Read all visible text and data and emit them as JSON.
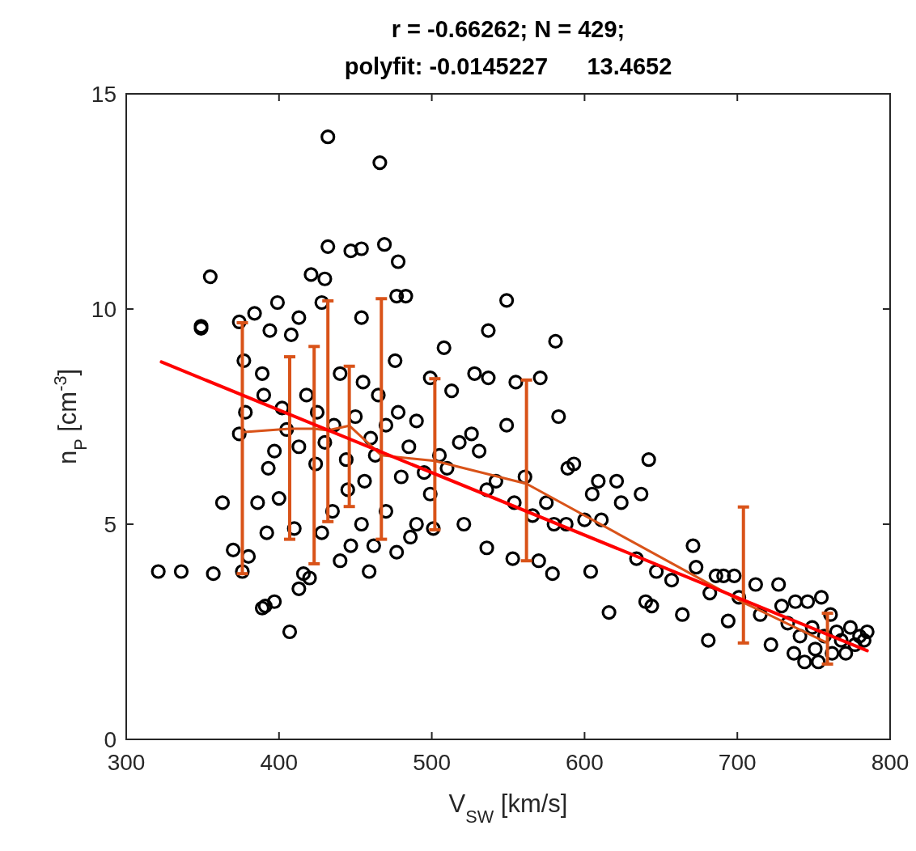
{
  "chart_data": {
    "type": "scatter",
    "title": "r = -0.66262; N = 429;",
    "subtitle": "polyfit: -0.0145227      13.4652",
    "xlabel": "V$_{SW}$ [km/s]",
    "ylabel": "n$_{P}$ [cm$^{-3}$]",
    "xlim": [
      300,
      800
    ],
    "ylim": [
      0,
      15
    ],
    "xticks": [
      300,
      400,
      500,
      600,
      700,
      800
    ],
    "yticks": [
      0,
      5,
      10,
      15
    ],
    "grid": false,
    "series": [
      {
        "marker": "circle",
        "color": "#000000",
        "x": [
          432,
          466,
          355,
          349,
          349,
          432,
          447,
          454,
          469,
          478,
          421,
          430,
          428,
          399,
          384,
          374,
          394,
          413,
          408,
          454,
          483,
          477,
          549,
          537,
          581,
          583,
          508,
          499,
          528,
          537,
          555,
          571,
          593,
          589,
          605,
          609,
          621,
          637,
          642,
          624,
          611,
          604,
          616,
          588,
          579,
          570,
          553,
          536,
          521,
          486,
          477,
          462,
          459,
          447,
          440,
          420,
          416,
          413,
          407,
          397,
          389,
          391,
          376,
          336,
          321,
          357,
          363,
          370,
          380,
          392,
          386,
          400,
          393,
          378,
          374,
          377,
          389,
          402,
          397,
          390,
          413,
          405,
          418,
          425,
          424,
          430,
          436,
          440,
          444,
          450,
          455,
          456,
          460,
          463,
          465,
          470,
          476,
          478,
          485,
          490,
          495,
          499,
          505,
          510,
          513,
          518,
          526,
          531,
          536,
          542,
          549,
          554,
          561,
          566,
          575,
          580,
          600,
          634,
          640,
          644,
          647,
          657,
          664,
          671,
          673,
          681,
          682,
          686,
          691,
          694,
          698,
          701,
          712,
          715,
          722,
          727,
          729,
          733,
          737,
          738,
          741,
          744,
          746,
          749,
          751,
          755,
          757,
          753,
          761,
          762,
          765,
          768,
          771,
          774,
          777,
          780,
          783,
          785,
          454,
          445,
          435,
          428,
          410,
          470,
          480,
          490,
          501
        ],
        "values": [
          14.0,
          13.4,
          10.75,
          9.6,
          9.55,
          11.45,
          11.35,
          11.4,
          11.5,
          11.1,
          10.8,
          10.7,
          10.15,
          10.15,
          9.9,
          9.7,
          9.5,
          9.8,
          9.4,
          9.8,
          10.3,
          10.3,
          10.2,
          9.5,
          9.25,
          7.5,
          9.1,
          8.4,
          8.5,
          8.4,
          8.3,
          8.4,
          6.4,
          6.3,
          5.7,
          6.0,
          6.0,
          5.7,
          6.5,
          5.5,
          5.1,
          3.9,
          2.95,
          5.0,
          3.85,
          4.15,
          4.2,
          4.45,
          5.0,
          4.7,
          4.35,
          4.5,
          3.9,
          4.5,
          4.15,
          3.75,
          3.85,
          3.5,
          2.5,
          3.2,
          3.05,
          3.1,
          3.9,
          3.9,
          3.9,
          3.85,
          5.5,
          4.4,
          4.25,
          4.8,
          5.5,
          5.6,
          6.3,
          7.6,
          7.1,
          8.8,
          8.5,
          7.7,
          6.7,
          8.0,
          6.8,
          7.2,
          8.0,
          7.6,
          6.4,
          6.9,
          7.3,
          8.5,
          6.5,
          7.5,
          8.3,
          6.0,
          7.0,
          6.6,
          8.0,
          7.3,
          8.8,
          7.6,
          6.8,
          7.4,
          6.2,
          5.7,
          6.6,
          6.3,
          8.1,
          6.9,
          7.1,
          6.7,
          5.8,
          6.0,
          7.3,
          5.5,
          6.1,
          5.2,
          5.5,
          5.0,
          5.1,
          4.2,
          3.2,
          3.1,
          3.9,
          3.7,
          2.9,
          4.5,
          4.0,
          2.3,
          3.4,
          3.8,
          3.8,
          2.75,
          3.8,
          3.3,
          3.6,
          2.9,
          2.2,
          3.6,
          3.1,
          2.7,
          2.0,
          3.2,
          2.4,
          1.8,
          3.2,
          2.6,
          2.1,
          3.3,
          2.4,
          1.8,
          2.9,
          2.0,
          2.5,
          2.3,
          2.0,
          2.6,
          2.2,
          2.4,
          2.3,
          2.5,
          5.0,
          5.8,
          5.3,
          4.8,
          4.9,
          5.3,
          6.1,
          5.0,
          4.9
        ]
      },
      {
        "type": "line",
        "marker": "none",
        "color": "#d95319",
        "x": [
          376,
          407,
          423,
          432,
          446,
          467,
          502,
          562,
          704,
          759
        ],
        "values": [
          7.14,
          7.22,
          7.22,
          7.18,
          7.29,
          6.6,
          6.47,
          5.94,
          3.18,
          2.24
        ],
        "errors": [
          [
            3.85,
            9.68
          ],
          [
            4.65,
            8.89
          ],
          [
            4.08,
            9.13
          ],
          [
            5.06,
            10.19
          ],
          [
            5.41,
            8.67
          ],
          [
            4.65,
            10.24
          ],
          [
            4.87,
            8.38
          ],
          [
            4.15,
            8.35
          ],
          [
            2.24,
            5.4
          ],
          [
            1.75,
            2.93
          ]
        ]
      },
      {
        "type": "line",
        "marker": "none",
        "color": "#ff0000",
        "x": [
          323,
          785
        ],
        "values": [
          8.77,
          2.06
        ]
      }
    ]
  }
}
